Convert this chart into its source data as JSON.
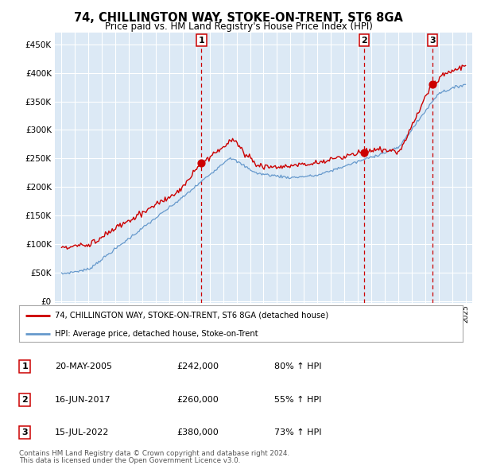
{
  "title1": "74, CHILLINGTON WAY, STOKE-ON-TRENT, ST6 8GA",
  "title2": "Price paid vs. HM Land Registry's House Price Index (HPI)",
  "plot_bg_color": "#dce9f5",
  "hpi_color": "#6699cc",
  "price_color": "#cc0000",
  "yticks": [
    0,
    50000,
    100000,
    150000,
    200000,
    250000,
    300000,
    350000,
    400000,
    450000
  ],
  "ytick_labels": [
    "£0",
    "£50K",
    "£100K",
    "£150K",
    "£200K",
    "£250K",
    "£300K",
    "£350K",
    "£400K",
    "£450K"
  ],
  "sales": [
    {
      "date_num": 2005.38,
      "price": 242000,
      "label": "1"
    },
    {
      "date_num": 2017.46,
      "price": 260000,
      "label": "2"
    },
    {
      "date_num": 2022.54,
      "price": 380000,
      "label": "3"
    }
  ],
  "sale_dates_str": [
    "20-MAY-2005",
    "16-JUN-2017",
    "15-JUL-2022"
  ],
  "sale_prices_str": [
    "£242,000",
    "£260,000",
    "£380,000"
  ],
  "sale_hpi_pct": [
    "80% ↑ HPI",
    "55% ↑ HPI",
    "73% ↑ HPI"
  ],
  "legend_line1": "74, CHILLINGTON WAY, STOKE-ON-TRENT, ST6 8GA (detached house)",
  "legend_line2": "HPI: Average price, detached house, Stoke-on-Trent",
  "footnote1": "Contains HM Land Registry data © Crown copyright and database right 2024.",
  "footnote2": "This data is licensed under the Open Government Licence v3.0.",
  "xlim_start": 1994.5,
  "xlim_end": 2025.5,
  "ylim_max": 470000
}
